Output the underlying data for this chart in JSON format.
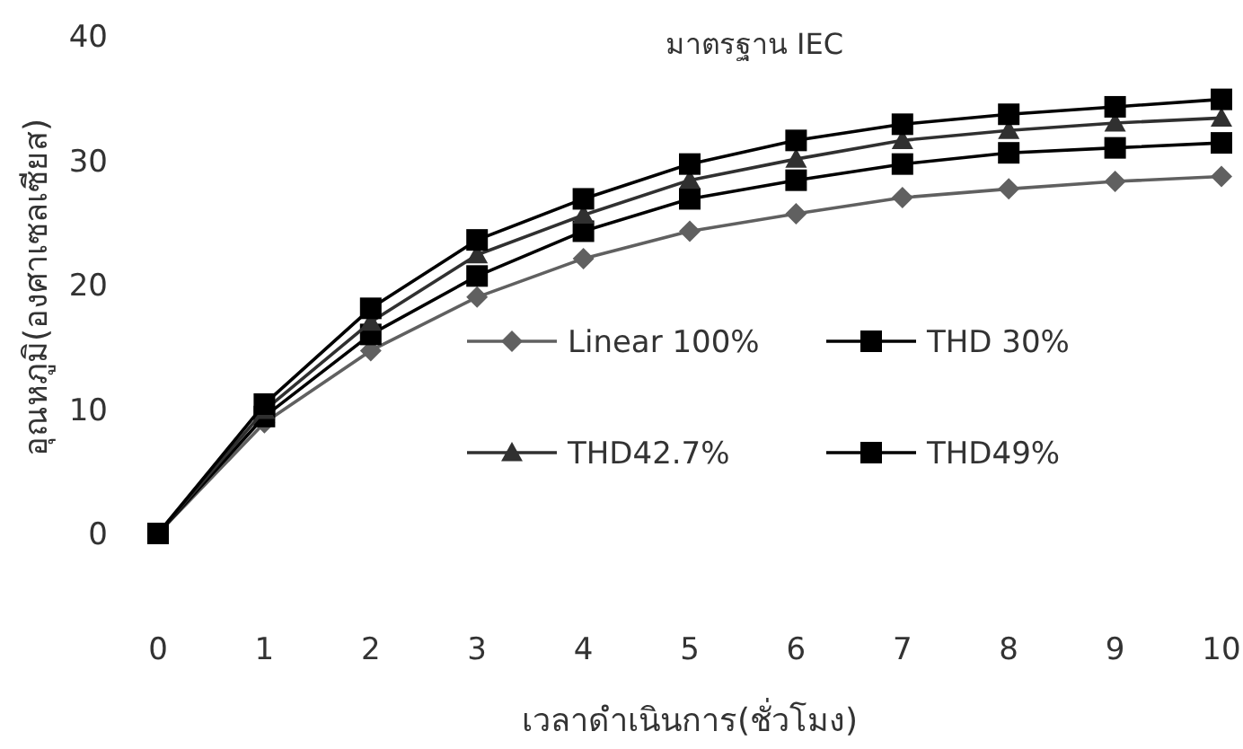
{
  "chart_data": {
    "type": "line",
    "title": "มาตรฐาน IEC",
    "xlabel": "เวลาดำเนินการ(ชั่วโมง)",
    "ylabel": "อุณหภูมิ(องศาเซลเซียส)",
    "x": [
      0,
      1,
      2,
      3,
      4,
      5,
      6,
      7,
      8,
      9,
      10
    ],
    "xlim": [
      0,
      10
    ],
    "xticks": [
      0,
      1,
      2,
      3,
      4,
      5,
      6,
      7,
      8,
      9,
      10
    ],
    "ylim": [
      0,
      40
    ],
    "yticks": [
      0,
      10,
      20,
      30,
      40
    ],
    "legend": "right",
    "grid": false,
    "line_style": "solid",
    "series": [
      {
        "name": "Linear 100%",
        "color": "#606060",
        "marker": "diamond",
        "values": [
          0,
          8.9,
          14.7,
          19.0,
          22.1,
          24.3,
          25.7,
          27.0,
          27.7,
          28.3,
          28.7
        ]
      },
      {
        "name": "THD 30%",
        "color": "#000000",
        "marker": "square",
        "values": [
          0,
          9.4,
          16.0,
          20.7,
          24.3,
          26.9,
          28.4,
          29.7,
          30.6,
          31.0,
          31.4
        ]
      },
      {
        "name": "THD42.7%",
        "color": "#303030",
        "marker": "triangle",
        "values": [
          0,
          9.9,
          17.0,
          22.4,
          25.6,
          28.4,
          30.1,
          31.6,
          32.4,
          33.0,
          33.4
        ]
      },
      {
        "name": "THD49%",
        "color": "#000000",
        "marker": "square",
        "values": [
          0,
          10.4,
          18.1,
          23.6,
          26.9,
          29.7,
          31.6,
          32.9,
          33.7,
          34.3,
          34.9
        ]
      }
    ]
  }
}
